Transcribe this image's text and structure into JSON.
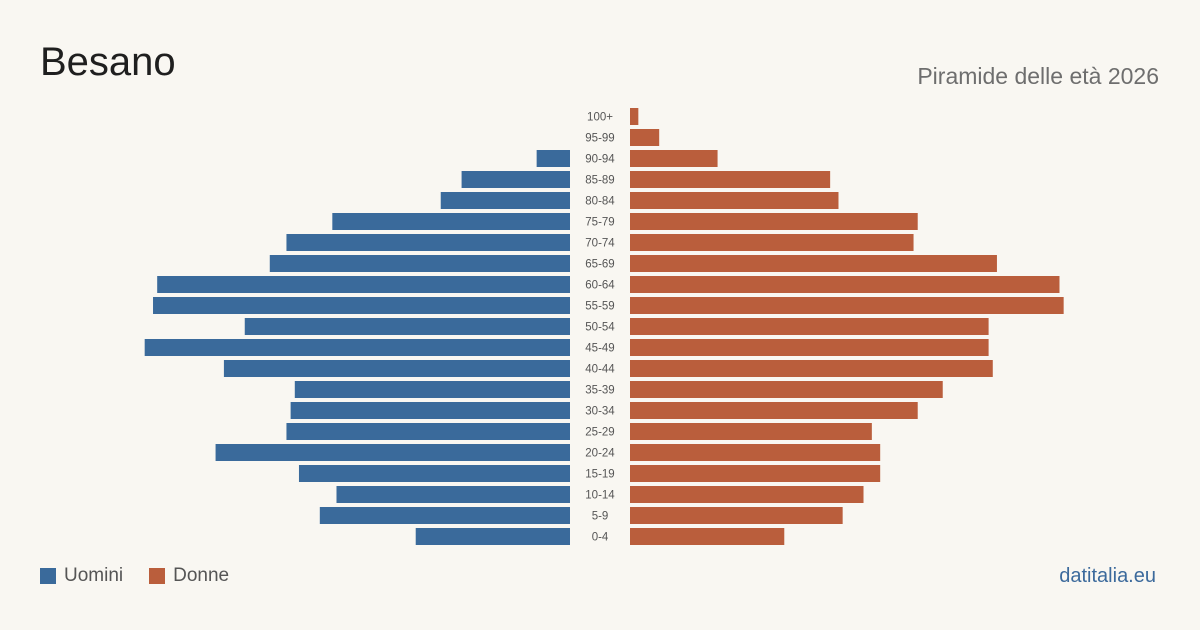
{
  "title": "Besano",
  "subtitle": "Piramide delle età 2026",
  "legend": {
    "male_label": "Uomini",
    "female_label": "Donne"
  },
  "source": "datitalia.eu",
  "colors": {
    "male": "#3a6a9b",
    "female": "#ba5e3c",
    "background": "#f9f7f2"
  },
  "chart_data": {
    "type": "bar",
    "orientation": "horizontal-pyramid",
    "categories": [
      "100+",
      "95-99",
      "90-94",
      "85-89",
      "80-84",
      "75-79",
      "70-74",
      "65-69",
      "60-64",
      "55-59",
      "50-54",
      "45-49",
      "40-44",
      "35-39",
      "30-34",
      "25-29",
      "20-24",
      "15-19",
      "10-14",
      "5-9",
      "0-4"
    ],
    "series": [
      {
        "name": "Uomini",
        "values": [
          0,
          0,
          8,
          26,
          31,
          57,
          68,
          72,
          99,
          100,
          78,
          102,
          83,
          66,
          67,
          68,
          85,
          65,
          56,
          60,
          37
        ]
      },
      {
        "name": "Donne",
        "values": [
          2,
          7,
          21,
          48,
          50,
          69,
          68,
          88,
          103,
          104,
          86,
          86,
          87,
          75,
          69,
          58,
          60,
          60,
          56,
          51,
          37
        ]
      }
    ],
    "xlim": [
      0,
      106
    ],
    "grid": false,
    "legend_position": "bottom-left"
  }
}
